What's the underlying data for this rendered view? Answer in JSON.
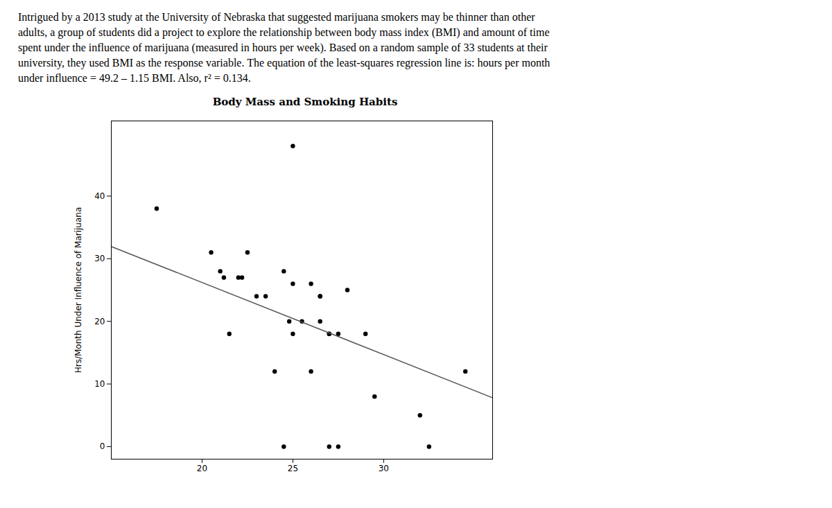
{
  "chart_data": {
    "type": "scatter",
    "title": "Body Mass and Smoking Habits",
    "ylabel": "Hrs/Month Under Influence of Marijuana",
    "annotations": [
      "Intrigued by a 2013 study at the University of Nebraska that suggested marijuana smokers may be thinner than other",
      "adults, a group of students did a project to explore the relationship between body mass index (BMI) and amount of time",
      "spent under the influence of marijuana (measured in hours per week). Based on a random sample of 33 students at their",
      "university, they used BMI as the response variable. The equation of the least-squares regression line is: hours per month",
      "under influence = 49.2 – 1.15 BMI. Also, r² = 0.134."
    ],
    "series": [
      {
        "type": "scatter",
        "color": "black",
        "marker": "circle",
        "x": [
          17.5,
          20.5,
          21.0,
          21.2,
          21.5,
          22.0,
          22.2,
          22.5,
          23.0,
          23.5,
          24.0,
          24.5,
          24.5,
          24.8,
          25.0,
          25.0,
          25.5,
          26.0,
          26.0,
          26.5,
          26.5,
          26.5,
          27.0,
          27.0,
          27.0,
          27.5,
          27.5,
          28.0,
          29.0,
          29.5,
          32.0,
          32.5,
          34.5,
          25.0
        ],
        "values": [
          38,
          31,
          28,
          27,
          18,
          27,
          27,
          31,
          24,
          24,
          12,
          28,
          0,
          20,
          26,
          18,
          20,
          26,
          12,
          24,
          24,
          20,
          18,
          18,
          0,
          0,
          18,
          25,
          18,
          8,
          5,
          0,
          12,
          48
        ]
      },
      {
        "type": "line",
        "color": "#555555",
        "line_style": "solid",
        "x": [
          15,
          36
        ],
        "values": [
          31.95,
          7.8
        ]
      }
    ],
    "xlim": [
      15,
      36
    ],
    "ylim": [
      -2,
      52
    ],
    "xticks": [
      20,
      25,
      30
    ],
    "yticks": [
      0,
      10,
      20,
      30,
      40
    ],
    "grid": false
  }
}
